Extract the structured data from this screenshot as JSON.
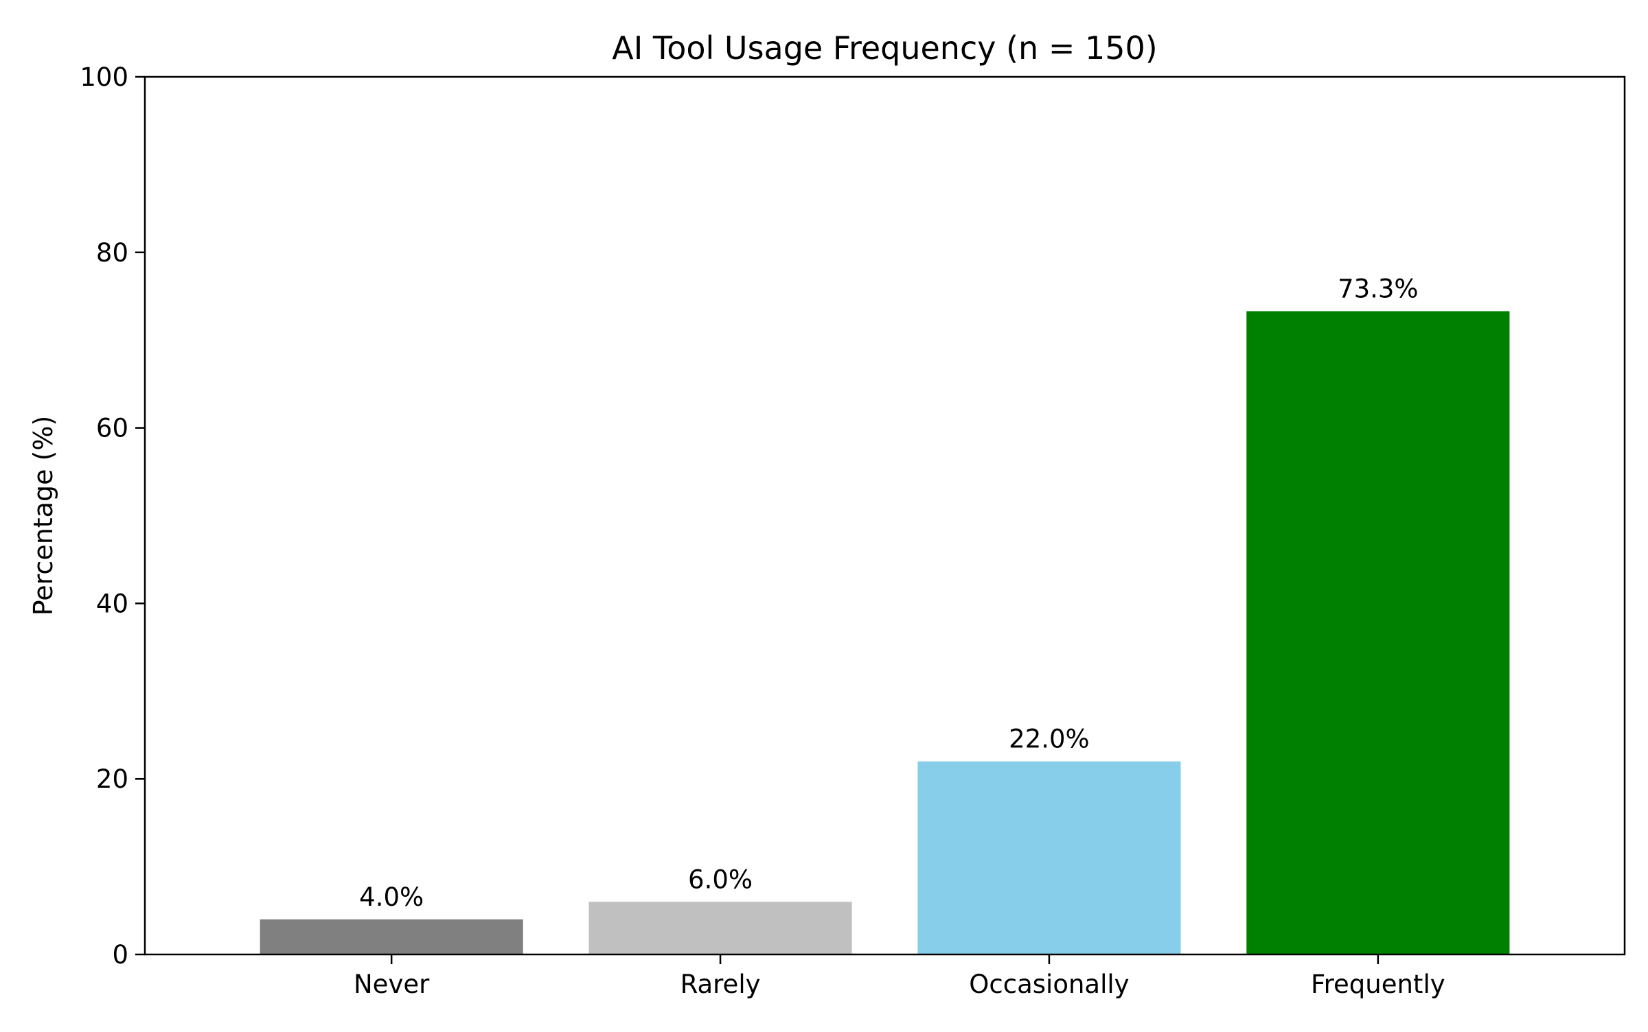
{
  "chart_data": {
    "type": "bar",
    "title": "AI Tool Usage Frequency (n = 150)",
    "xlabel": "",
    "ylabel": "Percentage (%)",
    "categories": [
      "Never",
      "Rarely",
      "Occasionally",
      "Frequently"
    ],
    "values": [
      4.0,
      6.0,
      22.0,
      73.3
    ],
    "value_labels": [
      "4.0%",
      "6.0%",
      "22.0%",
      "73.3%"
    ],
    "colors": [
      "#808080",
      "#c0c0c0",
      "#87ceeb",
      "#008000"
    ],
    "ylim": [
      0,
      100
    ],
    "yticks": [
      0,
      20,
      40,
      60,
      80,
      100
    ],
    "grid": false,
    "legend": "none"
  }
}
